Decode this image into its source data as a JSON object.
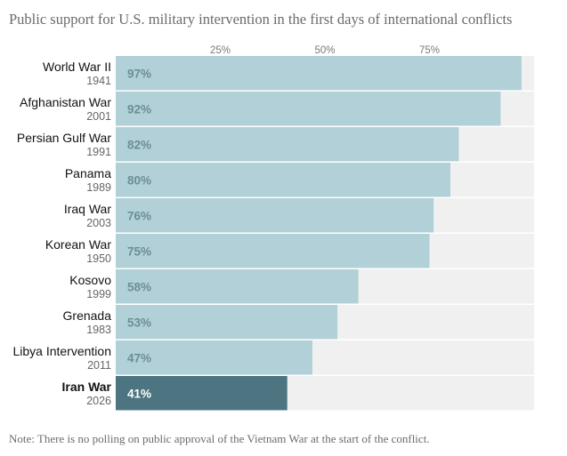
{
  "title": "Public support for U.S. military intervention in the first days of international conflicts",
  "note": "Note: There is no polling on public approval of the Vietnam War at the start of the conflict.",
  "colors": {
    "bar": "#b1d0d7",
    "bar_highlight": "#4c7481",
    "track": "#f0f0f0",
    "value_text": "#6c8e96",
    "value_text_highlight": "#ffffff"
  },
  "chart_data": {
    "type": "bar",
    "orientation": "horizontal",
    "xlim": [
      0,
      100
    ],
    "ticks": [
      {
        "value": 25,
        "label": "25%"
      },
      {
        "value": 50,
        "label": "50%"
      },
      {
        "value": 75,
        "label": "75%"
      }
    ],
    "categories": [
      {
        "name": "World War II",
        "year": "1941",
        "value": 97,
        "label": "97%",
        "highlight": false
      },
      {
        "name": "Afghanistan War",
        "year": "2001",
        "value": 92,
        "label": "92%",
        "highlight": false
      },
      {
        "name": "Persian Gulf War",
        "year": "1991",
        "value": 82,
        "label": "82%",
        "highlight": false
      },
      {
        "name": "Panama",
        "year": "1989",
        "value": 80,
        "label": "80%",
        "highlight": false
      },
      {
        "name": "Iraq War",
        "year": "2003",
        "value": 76,
        "label": "76%",
        "highlight": false
      },
      {
        "name": "Korean War",
        "year": "1950",
        "value": 75,
        "label": "75%",
        "highlight": false
      },
      {
        "name": "Kosovo",
        "year": "1999",
        "value": 58,
        "label": "58%",
        "highlight": false
      },
      {
        "name": "Grenada",
        "year": "1983",
        "value": 53,
        "label": "53%",
        "highlight": false
      },
      {
        "name": "Libya Intervention",
        "year": "2011",
        "value": 47,
        "label": "47%",
        "highlight": false
      },
      {
        "name": "Iran War",
        "year": "2026",
        "value": 41,
        "label": "41%",
        "highlight": true
      }
    ]
  }
}
